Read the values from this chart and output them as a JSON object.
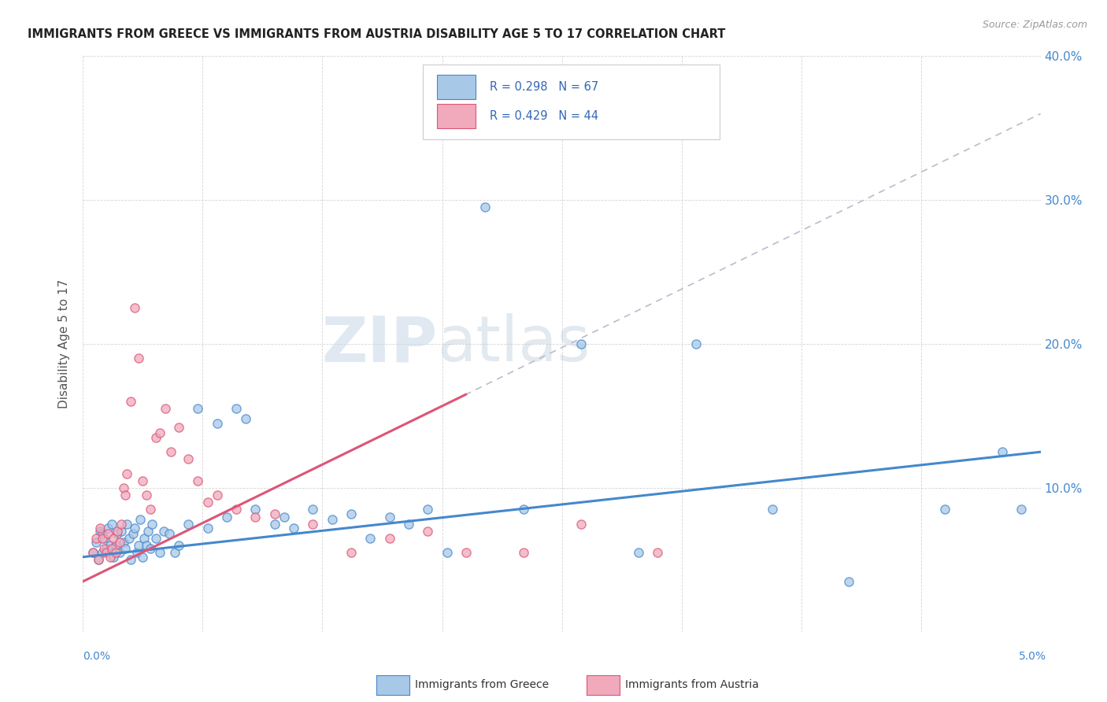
{
  "title": "IMMIGRANTS FROM GREECE VS IMMIGRANTS FROM AUSTRIA DISABILITY AGE 5 TO 17 CORRELATION CHART",
  "source": "Source: ZipAtlas.com",
  "ylabel": "Disability Age 5 to 17",
  "xmin": 0.0,
  "xmax": 5.0,
  "ymin": 0.0,
  "ymax": 40.0,
  "yticks": [
    0.0,
    10.0,
    20.0,
    30.0,
    40.0
  ],
  "ytick_labels": [
    "",
    "10.0%",
    "20.0%",
    "30.0%",
    "40.0%"
  ],
  "greece_R": 0.298,
  "greece_N": 67,
  "austria_R": 0.429,
  "austria_N": 44,
  "greece_color": "#a8c8e8",
  "austria_color": "#f0aabb",
  "greece_line_color": "#4488cc",
  "austria_line_color": "#dd5577",
  "dashed_line_color": "#bbbbcc",
  "title_color": "#222222",
  "source_color": "#999999",
  "axis_label_color": "#4488cc",
  "legend_text_color": "#3366bb",
  "watermark_color": "#ccd8e8",
  "background_color": "#ffffff",
  "greece_scatter_x": [
    0.05,
    0.07,
    0.08,
    0.09,
    0.1,
    0.1,
    0.11,
    0.12,
    0.13,
    0.14,
    0.15,
    0.16,
    0.17,
    0.18,
    0.19,
    0.2,
    0.21,
    0.22,
    0.23,
    0.24,
    0.25,
    0.26,
    0.27,
    0.28,
    0.29,
    0.3,
    0.31,
    0.32,
    0.33,
    0.34,
    0.35,
    0.36,
    0.38,
    0.4,
    0.42,
    0.45,
    0.48,
    0.5,
    0.55,
    0.6,
    0.65,
    0.7,
    0.75,
    0.8,
    0.85,
    0.9,
    1.0,
    1.05,
    1.1,
    1.2,
    1.3,
    1.4,
    1.5,
    1.6,
    1.7,
    1.8,
    1.9,
    2.1,
    2.3,
    2.6,
    2.9,
    3.2,
    3.6,
    4.0,
    4.5,
    4.8,
    4.9
  ],
  "greece_scatter_y": [
    5.5,
    6.2,
    5.0,
    7.0,
    6.8,
    5.5,
    6.5,
    5.8,
    7.2,
    6.0,
    7.5,
    5.2,
    6.0,
    6.8,
    5.5,
    7.0,
    6.2,
    5.8,
    7.5,
    6.5,
    5.0,
    6.8,
    7.2,
    5.5,
    6.0,
    7.8,
    5.2,
    6.5,
    6.0,
    7.0,
    5.8,
    7.5,
    6.5,
    5.5,
    7.0,
    6.8,
    5.5,
    6.0,
    7.5,
    15.5,
    7.2,
    14.5,
    8.0,
    15.5,
    14.8,
    8.5,
    7.5,
    8.0,
    7.2,
    8.5,
    7.8,
    8.2,
    6.5,
    8.0,
    7.5,
    8.5,
    5.5,
    29.5,
    8.5,
    20.0,
    5.5,
    20.0,
    8.5,
    3.5,
    8.5,
    12.5,
    8.5
  ],
  "austria_scatter_x": [
    0.05,
    0.07,
    0.08,
    0.09,
    0.1,
    0.11,
    0.12,
    0.13,
    0.14,
    0.15,
    0.16,
    0.17,
    0.18,
    0.19,
    0.2,
    0.21,
    0.22,
    0.23,
    0.25,
    0.27,
    0.29,
    0.31,
    0.33,
    0.35,
    0.38,
    0.4,
    0.43,
    0.46,
    0.5,
    0.55,
    0.6,
    0.65,
    0.7,
    0.8,
    0.9,
    1.0,
    1.2,
    1.4,
    1.6,
    1.8,
    2.0,
    2.3,
    2.6,
    3.0
  ],
  "austria_scatter_y": [
    5.5,
    6.5,
    5.0,
    7.2,
    6.5,
    5.8,
    5.5,
    6.8,
    5.2,
    5.8,
    6.5,
    5.5,
    7.0,
    6.2,
    7.5,
    10.0,
    9.5,
    11.0,
    16.0,
    22.5,
    19.0,
    10.5,
    9.5,
    8.5,
    13.5,
    13.8,
    15.5,
    12.5,
    14.2,
    12.0,
    10.5,
    9.0,
    9.5,
    8.5,
    8.0,
    8.2,
    7.5,
    5.5,
    6.5,
    7.0,
    5.5,
    5.5,
    7.5,
    5.5
  ],
  "greece_trend_x0": 0.0,
  "greece_trend_y0": 5.2,
  "greece_trend_x1": 5.0,
  "greece_trend_y1": 12.5,
  "austria_trend_x0": 0.0,
  "austria_trend_y0": 3.5,
  "austria_trend_x1": 2.0,
  "austria_trend_y1": 16.5
}
